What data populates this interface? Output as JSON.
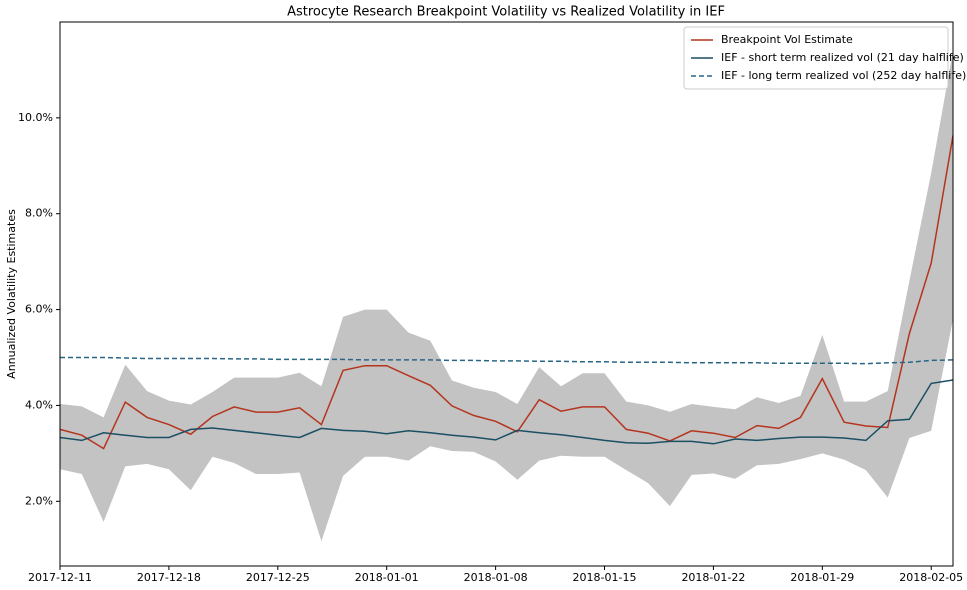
{
  "chart_data": {
    "type": "line",
    "title": "Astrocyte Research Breakpoint Volatility vs Realized Volatility in IEF",
    "ylabel": "Annualized Volatility Estimates",
    "categories": [
      "2017-12-11",
      null,
      null,
      null,
      null,
      "2017-12-18",
      null,
      null,
      null,
      null,
      "2017-12-25",
      null,
      null,
      null,
      null,
      "2018-01-01",
      null,
      null,
      null,
      null,
      "2018-01-08",
      null,
      null,
      null,
      null,
      "2018-01-15",
      null,
      null,
      null,
      null,
      "2018-01-22",
      null,
      null,
      null,
      null,
      "2018-01-29",
      null,
      null,
      null,
      null,
      "2018-02-05",
      null
    ],
    "ylim": [
      0.65,
      12.0
    ],
    "yticks": [
      {
        "value": 2,
        "label": "2.0%"
      },
      {
        "value": 4,
        "label": "4.0%"
      },
      {
        "value": 6,
        "label": "6.0%"
      },
      {
        "value": 8,
        "label": "8.0%"
      },
      {
        "value": 10,
        "label": "10.0%"
      }
    ],
    "legend": "upper right",
    "grid": false,
    "band": {
      "color": "#c3c3c3",
      "upper": [
        4.03,
        3.98,
        3.75,
        4.85,
        4.3,
        4.1,
        4.02,
        4.28,
        4.58,
        4.58,
        4.58,
        4.68,
        4.4,
        5.85,
        6.0,
        6.0,
        5.52,
        5.35,
        4.52,
        4.37,
        4.28,
        4.03,
        4.8,
        4.4,
        4.67,
        4.67,
        4.08,
        4.0,
        3.87,
        4.03,
        3.97,
        3.92,
        4.17,
        4.05,
        4.2,
        5.47,
        4.08,
        4.08,
        4.3,
        6.6,
        8.85,
        11.4
      ],
      "lower": [
        2.67,
        2.57,
        1.57,
        2.73,
        2.78,
        2.67,
        2.23,
        2.93,
        2.8,
        2.57,
        2.57,
        2.6,
        1.17,
        2.53,
        2.93,
        2.93,
        2.85,
        3.15,
        3.05,
        3.03,
        2.83,
        2.45,
        2.85,
        2.95,
        2.93,
        2.93,
        2.65,
        2.38,
        1.9,
        2.55,
        2.58,
        2.47,
        2.75,
        2.78,
        2.88,
        3.0,
        2.87,
        2.65,
        2.08,
        3.32,
        3.47,
        5.8
      ]
    },
    "series": [
      {
        "name": "Breakpoint Vol Estimate",
        "color": "#b5341e",
        "dashed": false,
        "values": [
          3.5,
          3.38,
          3.1,
          4.07,
          3.75,
          3.6,
          3.4,
          3.77,
          3.97,
          3.86,
          3.86,
          3.95,
          3.6,
          4.73,
          4.83,
          4.83,
          4.62,
          4.42,
          3.99,
          3.79,
          3.67,
          3.45,
          4.12,
          3.88,
          3.97,
          3.97,
          3.5,
          3.42,
          3.26,
          3.47,
          3.42,
          3.33,
          3.58,
          3.52,
          3.75,
          4.56,
          3.65,
          3.57,
          3.54,
          5.5,
          6.97,
          9.63
        ]
      },
      {
        "name": "IEF - short term realized vol (21 day halflife)",
        "color": "#1b4f63",
        "dashed": false,
        "values": [
          3.33,
          3.27,
          3.43,
          3.38,
          3.33,
          3.33,
          3.5,
          3.53,
          3.48,
          3.43,
          3.38,
          3.33,
          3.52,
          3.48,
          3.46,
          3.41,
          3.47,
          3.43,
          3.38,
          3.34,
          3.28,
          3.48,
          3.43,
          3.39,
          3.33,
          3.27,
          3.22,
          3.21,
          3.25,
          3.25,
          3.2,
          3.3,
          3.27,
          3.31,
          3.34,
          3.34,
          3.32,
          3.27,
          3.68,
          3.71,
          4.46,
          4.53
        ]
      },
      {
        "name": "IEF - long term realized vol (252 day halflife)",
        "color": "#2a6588",
        "dashed": true,
        "values": [
          5.0,
          5.0,
          5.0,
          4.99,
          4.98,
          4.98,
          4.98,
          4.98,
          4.97,
          4.97,
          4.96,
          4.96,
          4.96,
          4.96,
          4.95,
          4.95,
          4.95,
          4.95,
          4.94,
          4.94,
          4.93,
          4.93,
          4.92,
          4.92,
          4.91,
          4.91,
          4.9,
          4.9,
          4.9,
          4.89,
          4.89,
          4.89,
          4.89,
          4.88,
          4.88,
          4.88,
          4.88,
          4.87,
          4.89,
          4.9,
          4.94,
          4.95
        ]
      }
    ]
  }
}
